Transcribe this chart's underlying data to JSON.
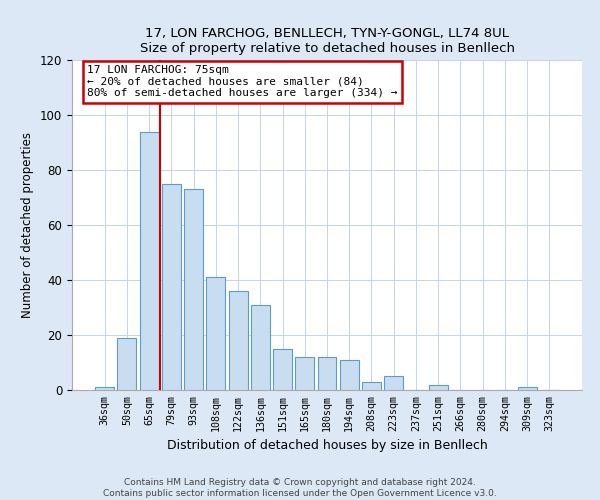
{
  "title": "17, LON FARCHOG, BENLLECH, TYN-Y-GONGL, LL74 8UL",
  "subtitle": "Size of property relative to detached houses in Benllech",
  "xlabel": "Distribution of detached houses by size in Benllech",
  "ylabel": "Number of detached properties",
  "bin_labels": [
    "36sqm",
    "50sqm",
    "65sqm",
    "79sqm",
    "93sqm",
    "108sqm",
    "122sqm",
    "136sqm",
    "151sqm",
    "165sqm",
    "180sqm",
    "194sqm",
    "208sqm",
    "223sqm",
    "237sqm",
    "251sqm",
    "266sqm",
    "280sqm",
    "294sqm",
    "309sqm",
    "323sqm"
  ],
  "bar_values": [
    1,
    19,
    94,
    75,
    73,
    41,
    36,
    31,
    15,
    12,
    12,
    11,
    3,
    5,
    0,
    2,
    0,
    0,
    0,
    1,
    0
  ],
  "bar_color": "#c9ddf0",
  "bar_edge_color": "#5b9bd5",
  "marker_line_color": "#cc0000",
  "annotation_line1": "17 LON FARCHOG: 75sqm",
  "annotation_line2": "← 20% of detached houses are smaller (84)",
  "annotation_line3": "80% of semi-detached houses are larger (334) →",
  "annotation_box_color": "#ffffff",
  "annotation_box_edge": "#cc0000",
  "ylim": [
    0,
    120
  ],
  "yticks": [
    0,
    20,
    40,
    60,
    80,
    100,
    120
  ],
  "footer_line1": "Contains HM Land Registry data © Crown copyright and database right 2024.",
  "footer_line2": "Contains public sector information licensed under the Open Government Licence v3.0.",
  "bg_color": "#dce8f5",
  "plot_bg_color": "#ffffff",
  "grid_color": "#c5d5e8"
}
